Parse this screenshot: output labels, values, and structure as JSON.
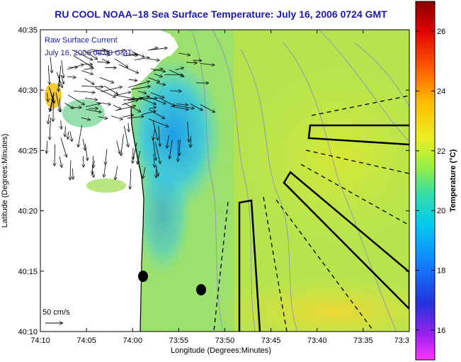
{
  "chart_data": {
    "type": "heatmap",
    "title": "RU COOL  NOAA–18  Sea Surface Temperature:  July 16, 2006 0724 GMT",
    "xlabel": "Longitude (Degrees:Minutes)",
    "ylabel": "Latitude (Degrees:Minutes)",
    "x_ticks": [
      "74:10",
      "74:05",
      "74:00",
      "73:55",
      "73:50",
      "73:45",
      "73:40",
      "73:35",
      "73:3"
    ],
    "y_ticks": [
      "40:35",
      "40:30",
      "40:25",
      "40:20",
      "40:15",
      "40:10"
    ],
    "colorbar": {
      "label": "Temperature (°C)",
      "ticks": [
        "26",
        "24",
        "22",
        "20",
        "18",
        "16"
      ],
      "range": [
        15,
        27
      ],
      "colors": [
        "#ff33ff",
        "#3311cc",
        "#1155ff",
        "#00bbff",
        "#22ddcc",
        "#88ee44",
        "#ddee33",
        "#ffcc00",
        "#ff7700",
        "#ff2200",
        "#cc0000",
        "#880000"
      ]
    },
    "legend_text": {
      "line1": "Raw Surface Current",
      "line2": "July 16, 2006 08:00 GMT"
    },
    "scale_label": "50 cm/s",
    "colors": {
      "title": "#1a1aa8",
      "land": "#ffffff",
      "water_mid": "#a8e060",
      "cold_core": "#2aaeea",
      "warm_patch": "#f2c41a",
      "outline": "#000000"
    }
  }
}
